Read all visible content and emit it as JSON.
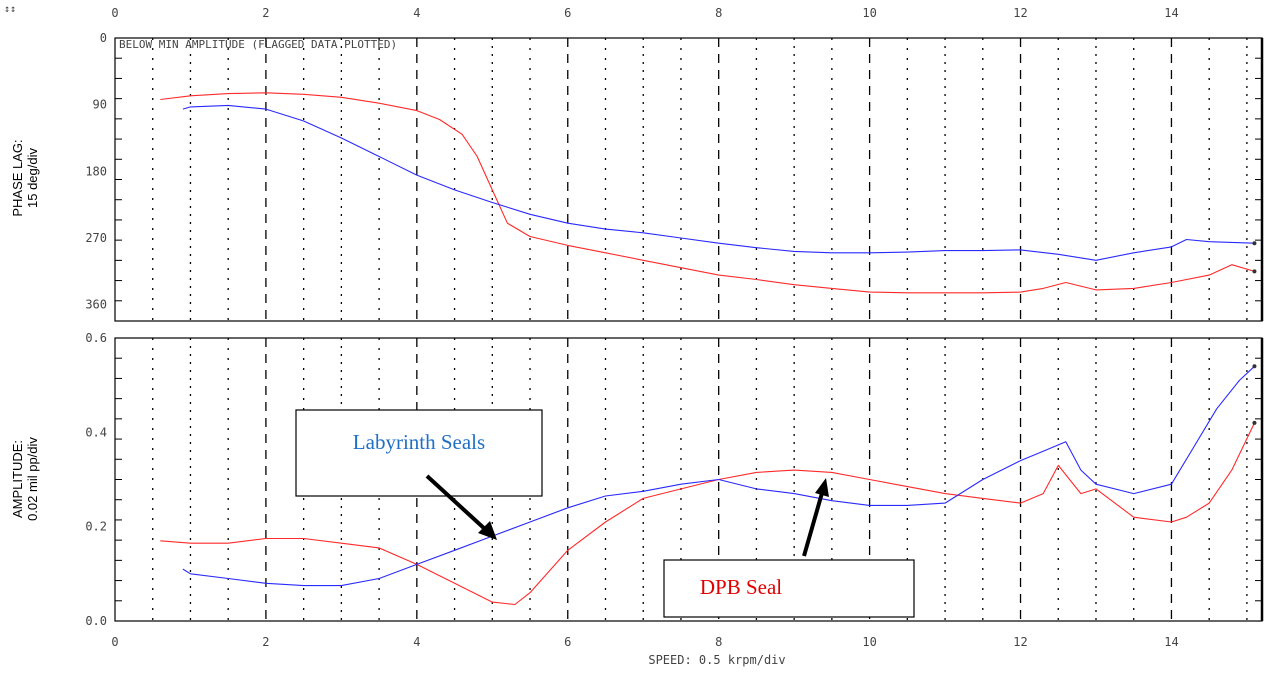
{
  "chart_data": {
    "type": "line",
    "marker": "↕↕",
    "xlabel": "SPEED: 0.5 krpm/div",
    "xlim": [
      0,
      15.2
    ],
    "xticks": [
      0,
      2,
      4,
      6,
      8,
      10,
      12,
      14
    ],
    "x_tick_labels": [
      "0",
      "2",
      "4",
      "6",
      "8",
      "10",
      "12",
      "14"
    ],
    "grid": true,
    "panels": [
      {
        "id": "phase",
        "ylabel_lines": [
          "PHASE LAG:",
          "15 deg/div"
        ],
        "ylim": [
          0,
          382
        ],
        "y_inverted": true,
        "yticks": [
          0,
          90,
          180,
          270,
          360
        ],
        "y_tick_labels": [
          "0",
          "90",
          "180",
          "270",
          "360"
        ],
        "note": "BELOW MIN AMPLITUDE (FLAGGED DATA PLOTTED)",
        "series": [
          {
            "color": "#ff2a2a",
            "x": [
              0.6,
              1,
              1.5,
              2,
              2.5,
              3,
              3.5,
              4,
              4.3,
              4.6,
              4.8,
              5,
              5.2,
              5.5,
              6,
              6.5,
              7,
              7.5,
              8,
              8.5,
              9,
              9.5,
              10,
              10.5,
              11,
              11.5,
              12,
              12.3,
              12.6,
              13,
              13.5,
              14,
              14.5,
              14.8,
              15.1
            ],
            "y": [
              83,
              78,
              75,
              74,
              76,
              80,
              88,
              98,
              110,
              130,
              160,
              205,
              250,
              268,
              280,
              290,
              300,
              310,
              320,
              326,
              333,
              338,
              343,
              344,
              344,
              344,
              343,
              338,
              330,
              340,
              338,
              330,
              320,
              306,
              315
            ]
          },
          {
            "color": "#2a2aff",
            "x": [
              0.9,
              1,
              1.5,
              2,
              2.5,
              3,
              3.5,
              4,
              4.5,
              5,
              5.5,
              6,
              6.5,
              7,
              7.5,
              8,
              8.5,
              9,
              9.5,
              10,
              10.5,
              11,
              11.5,
              12,
              12.5,
              13,
              13.5,
              14,
              14.2,
              14.5,
              15.1
            ],
            "y": [
              96,
              93,
              91,
              96,
              112,
              135,
              160,
              185,
              205,
              222,
              238,
              250,
              258,
              263,
              270,
              277,
              283,
              288,
              290,
              290,
              289,
              287,
              287,
              286,
              292,
              300,
              290,
              282,
              272,
              275,
              277
            ]
          }
        ]
      },
      {
        "id": "amplitude",
        "ylabel_lines": [
          "AMPLITUDE:",
          "0.02 mil pp/div"
        ],
        "ylim": [
          0,
          0.6
        ],
        "yticks": [
          0,
          0.2,
          0.4,
          0.6
        ],
        "y_tick_labels": [
          "0.0",
          "0.2",
          "0.4",
          "0.6"
        ],
        "series": [
          {
            "color": "#ff2a2a",
            "x": [
              0.6,
              1,
              1.5,
              2,
              2.5,
              3,
              3.5,
              4,
              4.5,
              5,
              5.3,
              5.5,
              6,
              6.5,
              7,
              7.5,
              8,
              8.5,
              9,
              9.5,
              10,
              10.5,
              11,
              11.5,
              12,
              12.3,
              12.5,
              12.8,
              13,
              13.5,
              14,
              14.2,
              14.5,
              14.8,
              15.1
            ],
            "y": [
              0.17,
              0.165,
              0.165,
              0.175,
              0.175,
              0.165,
              0.155,
              0.12,
              0.08,
              0.04,
              0.035,
              0.06,
              0.15,
              0.21,
              0.26,
              0.28,
              0.3,
              0.315,
              0.32,
              0.315,
              0.3,
              0.285,
              0.27,
              0.26,
              0.25,
              0.27,
              0.33,
              0.27,
              0.28,
              0.22,
              0.21,
              0.22,
              0.25,
              0.32,
              0.42
            ]
          },
          {
            "color": "#2a2aff",
            "x": [
              0.9,
              1,
              1.5,
              2,
              2.5,
              3,
              3.5,
              4,
              4.5,
              5,
              5.5,
              6,
              6.5,
              7,
              7.5,
              8,
              8.5,
              9,
              9.5,
              10,
              10.5,
              11,
              11.5,
              12,
              12.3,
              12.6,
              12.8,
              13,
              13.5,
              14,
              14.3,
              14.6,
              14.9,
              15.1
            ],
            "y": [
              0.11,
              0.1,
              0.09,
              0.08,
              0.075,
              0.075,
              0.09,
              0.12,
              0.15,
              0.18,
              0.21,
              0.24,
              0.265,
              0.275,
              0.29,
              0.3,
              0.28,
              0.27,
              0.255,
              0.245,
              0.245,
              0.25,
              0.3,
              0.34,
              0.36,
              0.38,
              0.32,
              0.29,
              0.27,
              0.29,
              0.37,
              0.45,
              0.51,
              0.54
            ]
          }
        ]
      }
    ],
    "annotations": [
      {
        "text": "Labyrinth Seals",
        "color": "#1f6fc7"
      },
      {
        "text": "DPB Seal",
        "color": "#e00000"
      }
    ]
  }
}
